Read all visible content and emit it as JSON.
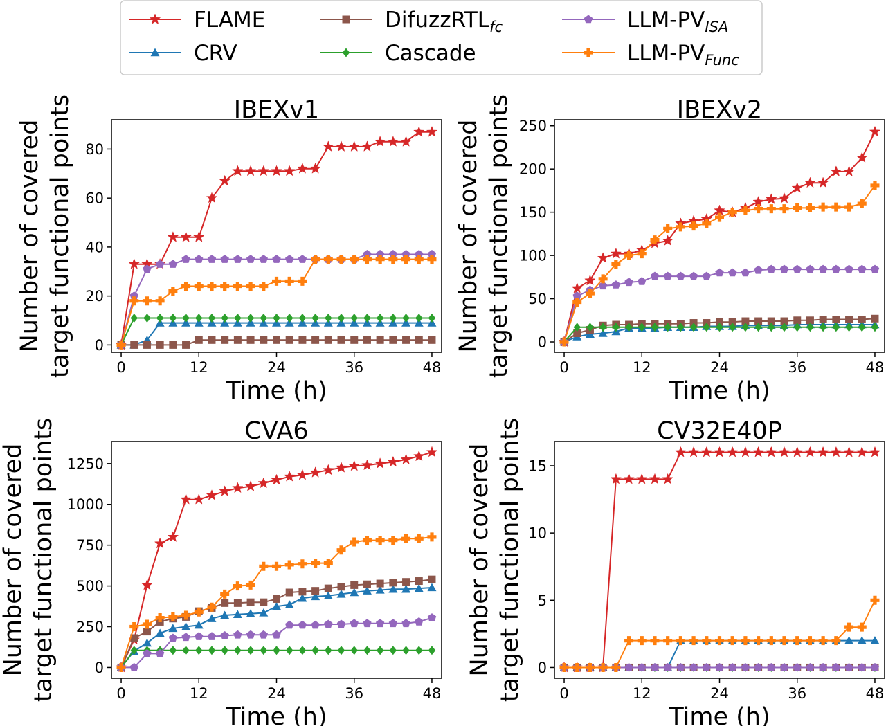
{
  "legend": [
    {
      "main": "FLAME",
      "sub": ""
    },
    {
      "main": "CRV",
      "sub": ""
    },
    {
      "main": "DifuzzRTL",
      "sub": "fc"
    },
    {
      "main": "Cascade",
      "sub": ""
    },
    {
      "main": "LLM-PV",
      "sub": "ISA"
    },
    {
      "main": "LLM-PV",
      "sub": "Func"
    }
  ],
  "series_style": {
    "FLAME": {
      "color": "#d62728",
      "marker": "star"
    },
    "CRV": {
      "color": "#1f77b4",
      "marker": "triangle"
    },
    "DifuzzRTL": {
      "color": "#8c564b",
      "marker": "square"
    },
    "Cascade": {
      "color": "#2ca02c",
      "marker": "diamond"
    },
    "LLM-PV_ISA": {
      "color": "#9467bd",
      "marker": "pentagon"
    },
    "LLM-PV_Func": {
      "color": "#ff7f0e",
      "marker": "plus"
    }
  },
  "chart_data": [
    {
      "type": "line",
      "title": "IBEXv1",
      "xlabel": "Time (h)",
      "ylabel_line1": "Number of covered",
      "ylabel_line2": "target functional points",
      "xlim": [
        -1.5,
        49.5
      ],
      "ylim": [
        -3,
        92
      ],
      "xticks": [
        0,
        12,
        24,
        36,
        48
      ],
      "yticks": [
        0,
        20,
        40,
        60,
        80
      ],
      "x": [
        0,
        2,
        4,
        6,
        8,
        10,
        12,
        14,
        16,
        18,
        20,
        22,
        24,
        26,
        28,
        30,
        32,
        34,
        36,
        38,
        40,
        42,
        44,
        46,
        48
      ],
      "series": [
        {
          "name": "FLAME",
          "values": [
            0,
            33,
            33,
            33,
            44,
            44,
            44,
            60,
            67,
            71,
            71,
            71,
            71,
            71,
            72,
            72,
            81,
            81,
            81,
            81,
            83,
            83,
            83,
            87,
            87
          ]
        },
        {
          "name": "CRV",
          "values": [
            0,
            0,
            2,
            9,
            9,
            9,
            9,
            9,
            9,
            9,
            9,
            9,
            9,
            9,
            9,
            9,
            9,
            9,
            9,
            9,
            9,
            9,
            9,
            9,
            9
          ]
        },
        {
          "name": "DifuzzRTL",
          "values": [
            0,
            0,
            0,
            0,
            0,
            0,
            2,
            2,
            2,
            2,
            2,
            2,
            2,
            2,
            2,
            2,
            2,
            2,
            2,
            2,
            2,
            2,
            2,
            2,
            2
          ]
        },
        {
          "name": "Cascade",
          "values": [
            0,
            11,
            11,
            11,
            11,
            11,
            11,
            11,
            11,
            11,
            11,
            11,
            11,
            11,
            11,
            11,
            11,
            11,
            11,
            11,
            11,
            11,
            11,
            11,
            11
          ]
        },
        {
          "name": "LLM-PV_ISA",
          "values": [
            0,
            20,
            31,
            33,
            33,
            35,
            35,
            35,
            35,
            35,
            35,
            35,
            35,
            35,
            35,
            35,
            35,
            35,
            35,
            37,
            37,
            37,
            37,
            37,
            37
          ]
        },
        {
          "name": "LLM-PV_Func",
          "values": [
            0,
            18,
            18,
            18,
            22,
            24,
            24,
            24,
            24,
            24,
            24,
            24,
            26,
            26,
            26,
            35,
            35,
            35,
            35,
            35,
            35,
            35,
            35,
            35,
            35
          ]
        }
      ]
    },
    {
      "type": "line",
      "title": "IBEXv2",
      "xlabel": "Time (h)",
      "ylabel_line1": "Number of covered",
      "ylabel_line2": "target functional points",
      "xlim": [
        -1.5,
        49.5
      ],
      "ylim": [
        -12,
        257
      ],
      "xticks": [
        0,
        12,
        24,
        36,
        48
      ],
      "yticks": [
        0,
        50,
        100,
        150,
        200,
        250
      ],
      "x": [
        0,
        2,
        4,
        6,
        8,
        10,
        12,
        14,
        16,
        18,
        20,
        22,
        24,
        26,
        28,
        30,
        32,
        34,
        36,
        38,
        40,
        42,
        44,
        46,
        48
      ],
      "series": [
        {
          "name": "FLAME",
          "values": [
            0,
            62,
            71,
            97,
            102,
            102,
            106,
            114,
            117,
            137,
            140,
            142,
            152,
            150,
            155,
            162,
            165,
            166,
            178,
            184,
            184,
            197,
            197,
            213,
            243
          ]
        },
        {
          "name": "CRV",
          "values": [
            0,
            6,
            9,
            10,
            12,
            16,
            16,
            16,
            17,
            17,
            17,
            18,
            18,
            18,
            19,
            19,
            19,
            19,
            20,
            20,
            20,
            20,
            20,
            20,
            20
          ]
        },
        {
          "name": "DifuzzRTL",
          "values": [
            0,
            10,
            14,
            19,
            20,
            20,
            21,
            21,
            21,
            21,
            22,
            22,
            23,
            23,
            24,
            24,
            24,
            24,
            25,
            25,
            26,
            26,
            26,
            26,
            27
          ]
        },
        {
          "name": "Cascade",
          "values": [
            0,
            17,
            17,
            17,
            17,
            17,
            17,
            17,
            17,
            17,
            17,
            17,
            17,
            17,
            17,
            17,
            17,
            17,
            17,
            17,
            17,
            17,
            17,
            17,
            17
          ]
        },
        {
          "name": "LLM-PV_ISA",
          "values": [
            0,
            53,
            60,
            65,
            66,
            69,
            70,
            76,
            76,
            76,
            76,
            76,
            80,
            80,
            80,
            83,
            84,
            84,
            84,
            84,
            84,
            84,
            84,
            84,
            84
          ]
        },
        {
          "name": "LLM-PV_Func",
          "values": [
            0,
            46,
            56,
            73,
            90,
            100,
            102,
            118,
            131,
            133,
            134,
            137,
            144,
            150,
            152,
            154,
            154,
            154,
            155,
            155,
            156,
            156,
            156,
            160,
            181
          ]
        }
      ]
    },
    {
      "type": "line",
      "title": "CVA6",
      "xlabel": "Time (h)",
      "ylabel_line1": "Number of covered",
      "ylabel_line2": "target functional points",
      "xlim": [
        -1.5,
        49.5
      ],
      "ylim": [
        -66,
        1385
      ],
      "xticks": [
        0,
        12,
        24,
        36,
        48
      ],
      "yticks": [
        0,
        250,
        500,
        750,
        1000,
        1250
      ],
      "x": [
        0,
        2,
        4,
        6,
        8,
        10,
        12,
        14,
        16,
        18,
        20,
        22,
        24,
        26,
        28,
        30,
        32,
        34,
        36,
        38,
        40,
        42,
        44,
        46,
        48
      ],
      "series": [
        {
          "name": "FLAME",
          "values": [
            0,
            170,
            505,
            760,
            800,
            1030,
            1030,
            1055,
            1080,
            1100,
            1110,
            1130,
            1150,
            1170,
            1180,
            1195,
            1210,
            1225,
            1235,
            1240,
            1250,
            1260,
            1275,
            1295,
            1320
          ]
        },
        {
          "name": "CRV",
          "values": [
            0,
            100,
            150,
            210,
            240,
            250,
            260,
            300,
            320,
            325,
            330,
            335,
            375,
            385,
            425,
            435,
            440,
            450,
            460,
            470,
            475,
            480,
            480,
            485,
            490
          ]
        },
        {
          "name": "DifuzzRTL",
          "values": [
            0,
            180,
            220,
            280,
            300,
            310,
            345,
            365,
            395,
            395,
            400,
            400,
            420,
            460,
            465,
            470,
            485,
            495,
            505,
            510,
            515,
            520,
            525,
            530,
            540
          ]
        },
        {
          "name": "Cascade",
          "values": [
            0,
            105,
            105,
            105,
            105,
            105,
            105,
            105,
            105,
            105,
            105,
            105,
            105,
            105,
            105,
            105,
            105,
            105,
            105,
            105,
            105,
            105,
            105,
            105,
            105
          ]
        },
        {
          "name": "LLM-PV_ISA",
          "values": [
            0,
            0,
            85,
            85,
            180,
            185,
            190,
            190,
            195,
            200,
            200,
            200,
            200,
            260,
            260,
            260,
            265,
            265,
            270,
            270,
            270,
            270,
            270,
            280,
            305
          ]
        },
        {
          "name": "LLM-PV_Func",
          "values": [
            0,
            250,
            265,
            305,
            310,
            320,
            340,
            370,
            450,
            500,
            505,
            620,
            620,
            630,
            635,
            640,
            640,
            720,
            770,
            780,
            780,
            780,
            790,
            790,
            800
          ]
        }
      ]
    },
    {
      "type": "line",
      "title": "CV32E40P",
      "xlabel": "Time (h)",
      "ylabel_line1": "Number of covered",
      "ylabel_line2": "target functional points",
      "xlim": [
        -1.5,
        49.5
      ],
      "ylim": [
        -0.8,
        16.8
      ],
      "xticks": [
        0,
        12,
        24,
        36,
        48
      ],
      "yticks": [
        0,
        5,
        10,
        15
      ],
      "x": [
        0,
        2,
        4,
        6,
        8,
        10,
        12,
        14,
        16,
        18,
        20,
        22,
        24,
        26,
        28,
        30,
        32,
        34,
        36,
        38,
        40,
        42,
        44,
        46,
        48
      ],
      "series": [
        {
          "name": "FLAME",
          "values": [
            0,
            0,
            0,
            0,
            14,
            14,
            14,
            14,
            14,
            16,
            16,
            16,
            16,
            16,
            16,
            16,
            16,
            16,
            16,
            16,
            16,
            16,
            16,
            16,
            16
          ]
        },
        {
          "name": "CRV",
          "values": [
            0,
            0,
            0,
            0,
            0,
            0,
            0,
            0,
            0,
            2,
            2,
            2,
            2,
            2,
            2,
            2,
            2,
            2,
            2,
            2,
            2,
            2,
            2,
            2,
            2
          ]
        },
        {
          "name": "DifuzzRTL",
          "values": [
            0,
            0,
            0,
            0,
            0,
            0,
            0,
            0,
            0,
            0,
            0,
            0,
            0,
            0,
            0,
            0,
            0,
            0,
            0,
            0,
            0,
            0,
            0,
            0,
            0
          ]
        },
        {
          "name": "Cascade",
          "values": [
            0,
            0,
            0,
            0,
            0,
            0,
            0,
            0,
            0,
            0,
            0,
            0,
            0,
            0,
            0,
            0,
            0,
            0,
            0,
            0,
            0,
            0,
            0,
            0,
            0
          ]
        },
        {
          "name": "LLM-PV_ISA",
          "values": [
            0,
            0,
            0,
            0,
            0,
            0,
            0,
            0,
            0,
            0,
            0,
            0,
            0,
            0,
            0,
            0,
            0,
            0,
            0,
            0,
            0,
            0,
            0,
            0,
            0
          ]
        },
        {
          "name": "LLM-PV_Func",
          "values": [
            0,
            0,
            0,
            0,
            0,
            2,
            2,
            2,
            2,
            2,
            2,
            2,
            2,
            2,
            2,
            2,
            2,
            2,
            2,
            2,
            2,
            2,
            3,
            3,
            5
          ]
        }
      ]
    }
  ]
}
